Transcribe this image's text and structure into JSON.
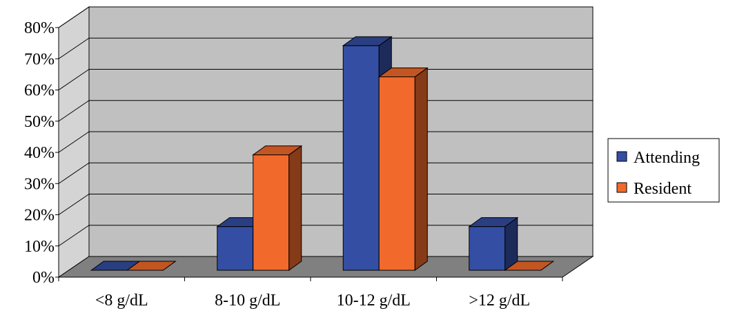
{
  "chart_data": {
    "type": "bar",
    "style": "3d-clustered-column",
    "categories": [
      "<8 g/dL",
      "8-10 g/dL",
      "10-12 g/dL",
      ">12 g/dL"
    ],
    "series": [
      {
        "name": "Attending",
        "values": [
          0,
          14,
          72,
          14
        ],
        "color": "#344ea3"
      },
      {
        "name": "Resident",
        "values": [
          0,
          37,
          62,
          0
        ],
        "color": "#f26a2b"
      }
    ],
    "yticks": [
      "0%",
      "10%",
      "20%",
      "30%",
      "40%",
      "50%",
      "60%",
      "70%",
      "80%"
    ],
    "ylim": [
      0,
      80
    ],
    "y_unit": "%",
    "grid": true,
    "legend_position": "right",
    "colors": {
      "back_wall": "#c0c0c0",
      "side_wall": "#d4d4d4",
      "floor": "#808080",
      "gridline": "#000000"
    }
  }
}
